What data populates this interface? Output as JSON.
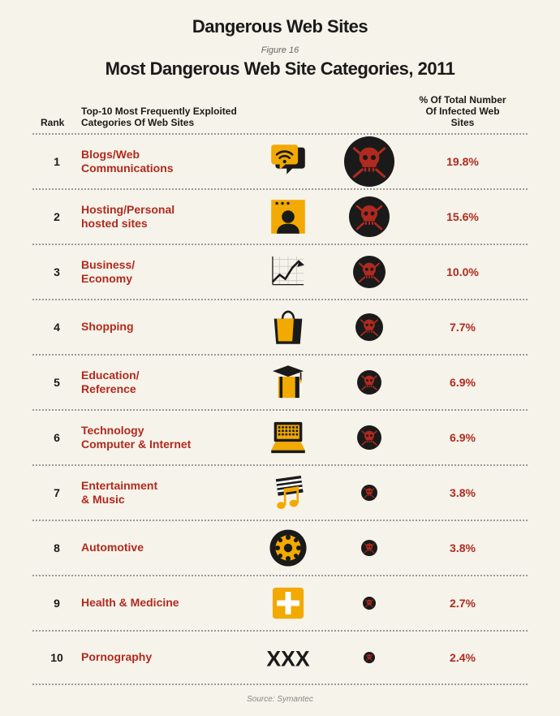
{
  "title": "Dangerous Web Sites",
  "figure_label": "Figure 16",
  "subtitle": "Most Dangerous Web Site Categories, 2011",
  "headers": {
    "rank": "Rank",
    "category": "Top-10 Most Frequently Exploited\nCategories Of Web Sites",
    "percent": "% Of Total Number\nOf Infected Web Sites"
  },
  "colors": {
    "background": "#f6f3ea",
    "text": "#1a1a1a",
    "category_text": "#b02a1f",
    "percent_text": "#b02a1f",
    "skull_bg": "#1a1a1a",
    "skull_fg": "#b02a1f",
    "icon_yellow": "#f2a900",
    "icon_black": "#1a1a1a",
    "divider": "#999999"
  },
  "typography": {
    "title_fontsize": 22,
    "subtitle_fontsize": 22,
    "row_fontsize": 14,
    "header_fontsize": 12,
    "source_fontsize": 10
  },
  "skull_max_diameter": 62,
  "skull_min_diameter": 14,
  "icon_size": 52,
  "rows": [
    {
      "rank": 1,
      "category": "Blogs/Web\nCommunications",
      "percent": "19.8%",
      "value": 19.8,
      "icon": "chat-wifi",
      "skull_d": 62
    },
    {
      "rank": 2,
      "category": "Hosting/Personal\nhosted sites",
      "percent": "15.6%",
      "value": 15.6,
      "icon": "profile",
      "skull_d": 50
    },
    {
      "rank": 3,
      "category": "Business/\nEconomy",
      "percent": "10.0%",
      "value": 10.0,
      "icon": "chart-up",
      "skull_d": 40
    },
    {
      "rank": 4,
      "category": "Shopping",
      "percent": "7.7%",
      "value": 7.7,
      "icon": "bag",
      "skull_d": 34
    },
    {
      "rank": 5,
      "category": "Education/\nReference",
      "percent": "6.9%",
      "value": 6.9,
      "icon": "grad-book",
      "skull_d": 30
    },
    {
      "rank": 6,
      "category": "Technology\nComputer & Internet",
      "percent": "6.9%",
      "value": 6.9,
      "icon": "laptop",
      "skull_d": 30
    },
    {
      "rank": 7,
      "category": "Entertainment\n& Music",
      "percent": "3.8%",
      "value": 3.8,
      "icon": "music",
      "skull_d": 20
    },
    {
      "rank": 8,
      "category": "Automotive",
      "percent": "3.8%",
      "value": 3.8,
      "icon": "wheel",
      "skull_d": 20
    },
    {
      "rank": 9,
      "category": "Health & Medicine",
      "percent": "2.7%",
      "value": 2.7,
      "icon": "med-cross",
      "skull_d": 16
    },
    {
      "rank": 10,
      "category": "Pornography",
      "percent": "2.4%",
      "value": 2.4,
      "icon": "xxx",
      "skull_d": 14
    }
  ],
  "source": "Source: Symantec"
}
